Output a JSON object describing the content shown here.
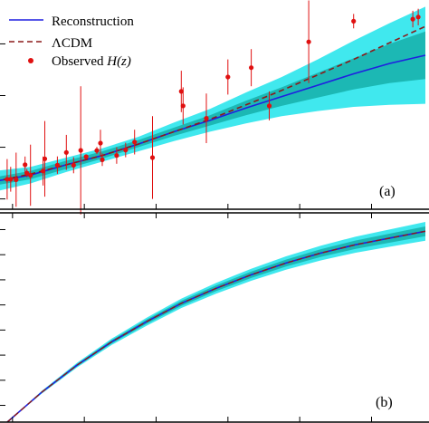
{
  "colors": {
    "reconstruction": "#1f1fe0",
    "lcdm": "#8b1a1a",
    "observed": "#e01010",
    "band_outer": "#40e8ee",
    "band_inner": "#1cb8b4",
    "axes": "#000000"
  },
  "legend": {
    "items": [
      {
        "label": "Reconstruction",
        "style": "line"
      },
      {
        "label": "ΛCDM",
        "style": "dashed"
      },
      {
        "label": "Observed ",
        "italic": "H(z)",
        "style": "marker"
      }
    ]
  },
  "chart_data": [
    {
      "type": "line",
      "panel_label": "(a)",
      "title": "",
      "xlabel": "",
      "ylabel": "",
      "xlim": [
        0.0,
        2.4
      ],
      "ylim": [
        40,
        260
      ],
      "grid": false,
      "legend_placement": "top-left",
      "series": [
        {
          "name": "Reconstruction",
          "x": [
            0.0,
            0.2,
            0.4,
            0.6,
            0.8,
            1.0,
            1.2,
            1.4,
            1.6,
            1.8,
            2.0,
            2.2,
            2.4
          ],
          "y": [
            67,
            73,
            83,
            92,
            103,
            115,
            126,
            138,
            149,
            160,
            171,
            181,
            189
          ]
        },
        {
          "name": "ΛCDM",
          "x": [
            0.0,
            0.2,
            0.4,
            0.6,
            0.8,
            1.0,
            1.2,
            1.4,
            1.6,
            1.8,
            2.0,
            2.2,
            2.4
          ],
          "y": [
            67,
            74,
            83,
            92,
            103,
            115,
            127,
            141,
            155,
            170,
            185,
            201,
            217
          ]
        }
      ],
      "bands": {
        "x": [
          0.0,
          0.2,
          0.4,
          0.6,
          0.8,
          1.0,
          1.2,
          1.4,
          1.6,
          1.8,
          2.0,
          2.2,
          2.4
        ],
        "inner_lower": [
          63,
          69,
          79,
          89,
          100,
          111,
          121,
          131,
          140,
          148,
          156,
          162,
          166
        ],
        "inner_upper": [
          71,
          77,
          87,
          96,
          107,
          119,
          131,
          145,
          158,
          172,
          186,
          200,
          212
        ],
        "outer_lower": [
          57,
          65,
          76,
          86,
          96,
          106,
          115,
          123,
          130,
          135,
          139,
          141,
          142
        ],
        "outer_upper": [
          77,
          81,
          90,
          99,
          110,
          124,
          137,
          153,
          168,
          185,
          203,
          220,
          236
        ]
      },
      "observed_hz": [
        {
          "z": 0.07,
          "H": 69,
          "err": 19.6
        },
        {
          "z": 0.09,
          "H": 69,
          "err": 12
        },
        {
          "z": 0.12,
          "H": 68.6,
          "err": 26.2
        },
        {
          "z": 0.17,
          "H": 83,
          "err": 8
        },
        {
          "z": 0.18,
          "H": 75,
          "err": 4
        },
        {
          "z": 0.2,
          "H": 72.9,
          "err": 29.6
        },
        {
          "z": 0.27,
          "H": 77,
          "err": 14
        },
        {
          "z": 0.28,
          "H": 88.8,
          "err": 36.6
        },
        {
          "z": 0.35,
          "H": 82.7,
          "err": 8.4
        },
        {
          "z": 0.4,
          "H": 95,
          "err": 17
        },
        {
          "z": 0.44,
          "H": 82.6,
          "err": 7.8
        },
        {
          "z": 0.48,
          "H": 97,
          "err": 62
        },
        {
          "z": 0.51,
          "H": 90.8,
          "err": 1.9
        },
        {
          "z": 0.57,
          "H": 96.8,
          "err": 3.4
        },
        {
          "z": 0.59,
          "H": 104,
          "err": 13
        },
        {
          "z": 0.6,
          "H": 87.9,
          "err": 6.1
        },
        {
          "z": 0.68,
          "H": 92,
          "err": 8
        },
        {
          "z": 0.73,
          "H": 97.3,
          "err": 7
        },
        {
          "z": 0.78,
          "H": 105,
          "err": 12
        },
        {
          "z": 0.88,
          "H": 90,
          "err": 40
        },
        {
          "z": 1.04,
          "H": 154,
          "err": 20
        },
        {
          "z": 1.05,
          "H": 140,
          "err": 18
        },
        {
          "z": 1.18,
          "H": 128,
          "err": 24
        },
        {
          "z": 1.3,
          "H": 168,
          "err": 17
        },
        {
          "z": 1.43,
          "H": 177,
          "err": 18
        },
        {
          "z": 1.53,
          "H": 140,
          "err": 14
        },
        {
          "z": 1.75,
          "H": 202,
          "err": 40
        },
        {
          "z": 2.0,
          "H": 222,
          "err": 7
        },
        {
          "z": 2.33,
          "H": 224,
          "err": 8
        },
        {
          "z": 2.36,
          "H": 226,
          "err": 8
        }
      ]
    },
    {
      "type": "line",
      "panel_label": "(b)",
      "title": "",
      "xlabel": "",
      "ylabel": "",
      "xlim": [
        0.0,
        2.4
      ],
      "ylim": [
        0.0,
        1.25
      ],
      "grid": false,
      "series": [
        {
          "name": "Reconstruction",
          "x": [
            0.0,
            0.2,
            0.4,
            0.6,
            0.8,
            1.0,
            1.2,
            1.4,
            1.6,
            1.8,
            2.0,
            2.2,
            2.4
          ],
          "y": [
            0.0,
            0.18,
            0.34,
            0.48,
            0.6,
            0.71,
            0.8,
            0.88,
            0.95,
            1.01,
            1.06,
            1.1,
            1.14
          ]
        },
        {
          "name": "ΛCDM",
          "x": [
            0.0,
            0.2,
            0.4,
            0.6,
            0.8,
            1.0,
            1.2,
            1.4,
            1.6,
            1.8,
            2.0,
            2.2,
            2.4
          ],
          "y": [
            0.0,
            0.18,
            0.34,
            0.48,
            0.6,
            0.71,
            0.8,
            0.88,
            0.95,
            1.01,
            1.06,
            1.1,
            1.14
          ]
        }
      ],
      "bands": {
        "x": [
          0.0,
          0.2,
          0.4,
          0.6,
          0.8,
          1.0,
          1.2,
          1.4,
          1.6,
          1.8,
          2.0,
          2.2,
          2.4
        ],
        "inner_halfwidth": [
          0.0,
          0.004,
          0.007,
          0.01,
          0.013,
          0.015,
          0.017,
          0.019,
          0.021,
          0.023,
          0.025,
          0.027,
          0.029
        ],
        "outer_halfwidth": [
          0.0,
          0.008,
          0.014,
          0.019,
          0.024,
          0.028,
          0.032,
          0.036,
          0.04,
          0.044,
          0.048,
          0.052,
          0.056
        ]
      }
    }
  ]
}
